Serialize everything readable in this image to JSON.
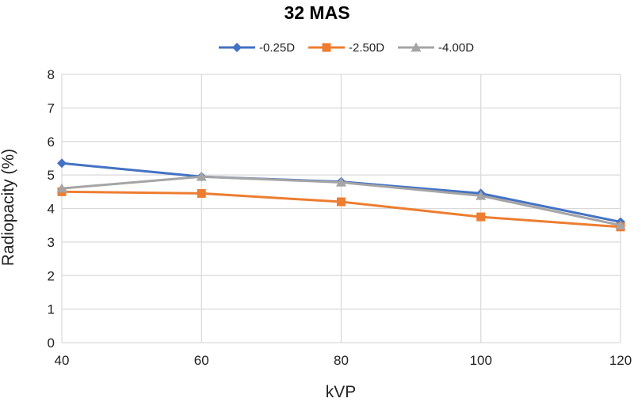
{
  "chart_data": {
    "type": "line",
    "title": "32 MAS",
    "xlabel": "kVP",
    "ylabel": "Radiopacity (%)",
    "x": [
      40,
      60,
      80,
      100,
      120
    ],
    "xlim": [
      40,
      120
    ],
    "ylim": [
      0,
      8
    ],
    "yticks": [
      0,
      1,
      2,
      3,
      4,
      5,
      6,
      7,
      8
    ],
    "grid": true,
    "legend_position": "top",
    "series": [
      {
        "name": "-0.25D",
        "values": [
          5.35,
          4.95,
          4.8,
          4.45,
          3.6
        ],
        "color": "#4472C4",
        "marker": "diamond"
      },
      {
        "name": "-2.50D",
        "values": [
          4.5,
          4.45,
          4.2,
          3.75,
          3.45
        ],
        "color": "#ED7D31",
        "marker": "square"
      },
      {
        "name": "-4.00D",
        "values": [
          4.6,
          4.95,
          4.78,
          4.38,
          3.5
        ],
        "color": "#A5A5A5",
        "marker": "triangle"
      }
    ]
  }
}
